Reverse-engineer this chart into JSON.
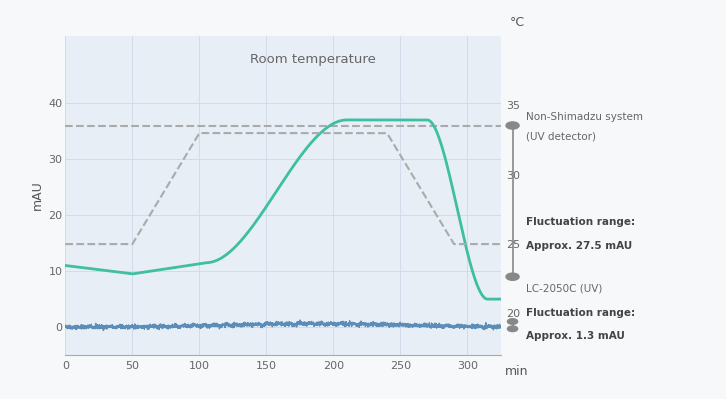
{
  "title": "Room temperature",
  "xlabel": "min",
  "ylabel_left": "mAU",
  "ylabel_right": "°C",
  "xlim": [
    0,
    325
  ],
  "ylim_left": [
    -5,
    52
  ],
  "ylim_right": [
    17,
    40
  ],
  "background_color": "#f7f8fa",
  "plot_bg_color": "#e8eef6",
  "grid_color": "#d0d8e8",
  "dashed_line_y_mau": 36,
  "dashed_line_color": "#aaaaaa",
  "temp_line_color": "#aaaaaa",
  "green_line_color": "#3dbfa0",
  "blue_line_color": "#5b8db8",
  "annotation_text_1a": "Non-Shimadzu system",
  "annotation_text_1b": "(UV detector)",
  "annotation_bold_1a": "Fluctuation range:",
  "annotation_bold_1b": "Approx. 27.5 mAU",
  "annotation_text_2": "LC-2050C (UV)",
  "annotation_bold_2a": "Fluctuation range:",
  "annotation_bold_2b": "Approx. 1.3 mAU",
  "xticks": [
    0,
    50,
    100,
    150,
    200,
    250,
    300
  ],
  "yticks_left": [
    0,
    10,
    20,
    30,
    40
  ],
  "yticks_right": [
    20,
    25,
    30,
    35
  ]
}
